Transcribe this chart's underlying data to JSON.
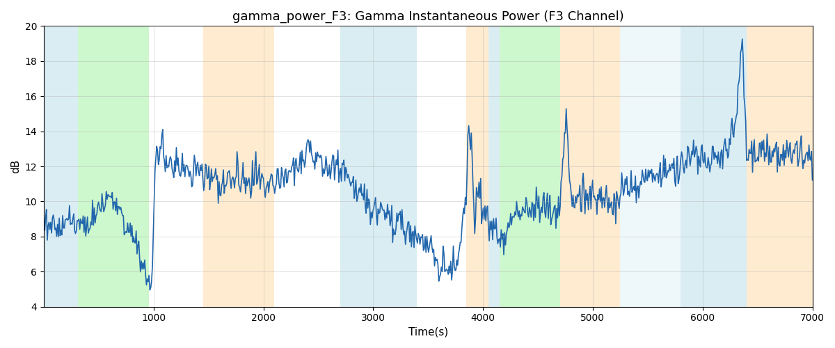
{
  "title": "gamma_power_F3: Gamma Instantaneous Power (F3 Channel)",
  "xlabel": "Time(s)",
  "ylabel": "dB",
  "xlim": [
    0,
    7000
  ],
  "ylim": [
    4,
    20
  ],
  "yticks": [
    4,
    6,
    8,
    10,
    12,
    14,
    16,
    18,
    20
  ],
  "xticks": [
    1000,
    2000,
    3000,
    4000,
    5000,
    6000,
    7000
  ],
  "bg_bands": [
    {
      "xmin": 0,
      "xmax": 310,
      "color": "#add8e6",
      "alpha": 0.45
    },
    {
      "xmin": 310,
      "xmax": 960,
      "color": "#90ee90",
      "alpha": 0.45
    },
    {
      "xmin": 1450,
      "xmax": 2100,
      "color": "#ffdcaa",
      "alpha": 0.55
    },
    {
      "xmin": 2700,
      "xmax": 3400,
      "color": "#add8e6",
      "alpha": 0.45
    },
    {
      "xmin": 3850,
      "xmax": 4050,
      "color": "#ffdcaa",
      "alpha": 0.55
    },
    {
      "xmin": 4050,
      "xmax": 4150,
      "color": "#add8e6",
      "alpha": 0.45
    },
    {
      "xmin": 4150,
      "xmax": 4700,
      "color": "#90ee90",
      "alpha": 0.45
    },
    {
      "xmin": 4700,
      "xmax": 5250,
      "color": "#ffdcaa",
      "alpha": 0.55
    },
    {
      "xmin": 5250,
      "xmax": 5800,
      "color": "#add8e6",
      "alpha": 0.2
    },
    {
      "xmin": 5800,
      "xmax": 6400,
      "color": "#add8e6",
      "alpha": 0.45
    },
    {
      "xmin": 6400,
      "xmax": 7000,
      "color": "#ffdcaa",
      "alpha": 0.55
    }
  ],
  "line_color": "#2166ac",
  "line_width": 1.2,
  "grid_color": "#aaaaaa",
  "grid_alpha": 0.5,
  "title_fontsize": 13,
  "label_fontsize": 11,
  "tick_fontsize": 10
}
